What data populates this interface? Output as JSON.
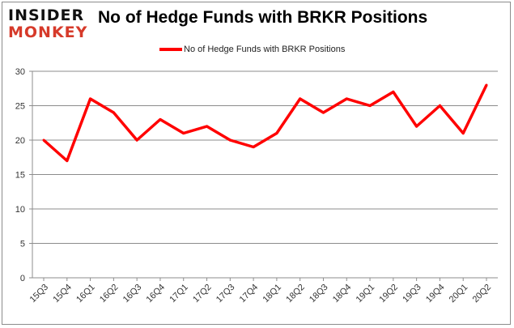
{
  "logo": {
    "line1": "INSIDER",
    "line2": "MONKEY"
  },
  "chart_data": {
    "type": "line",
    "title": "No of Hedge Funds with BRKR Positions",
    "categories": [
      "15Q3",
      "15Q4",
      "16Q1",
      "16Q2",
      "16Q3",
      "16Q4",
      "17Q1",
      "17Q2",
      "17Q3",
      "17Q4",
      "18Q1",
      "18Q2",
      "18Q3",
      "18Q4",
      "19Q1",
      "19Q2",
      "19Q3",
      "19Q4",
      "20Q1",
      "20Q2"
    ],
    "series": [
      {
        "name": "No of Hedge Funds with BRKR Positions",
        "color": "#ff0000",
        "values": [
          20,
          17,
          26,
          24,
          20,
          23,
          21,
          22,
          20,
          19,
          21,
          26,
          24,
          26,
          25,
          27,
          22,
          25,
          21,
          28
        ]
      }
    ],
    "ylim": [
      0,
      30
    ],
    "yticks": [
      0,
      5,
      10,
      15,
      20,
      25,
      30
    ],
    "grid": true,
    "legend": "top-center"
  }
}
